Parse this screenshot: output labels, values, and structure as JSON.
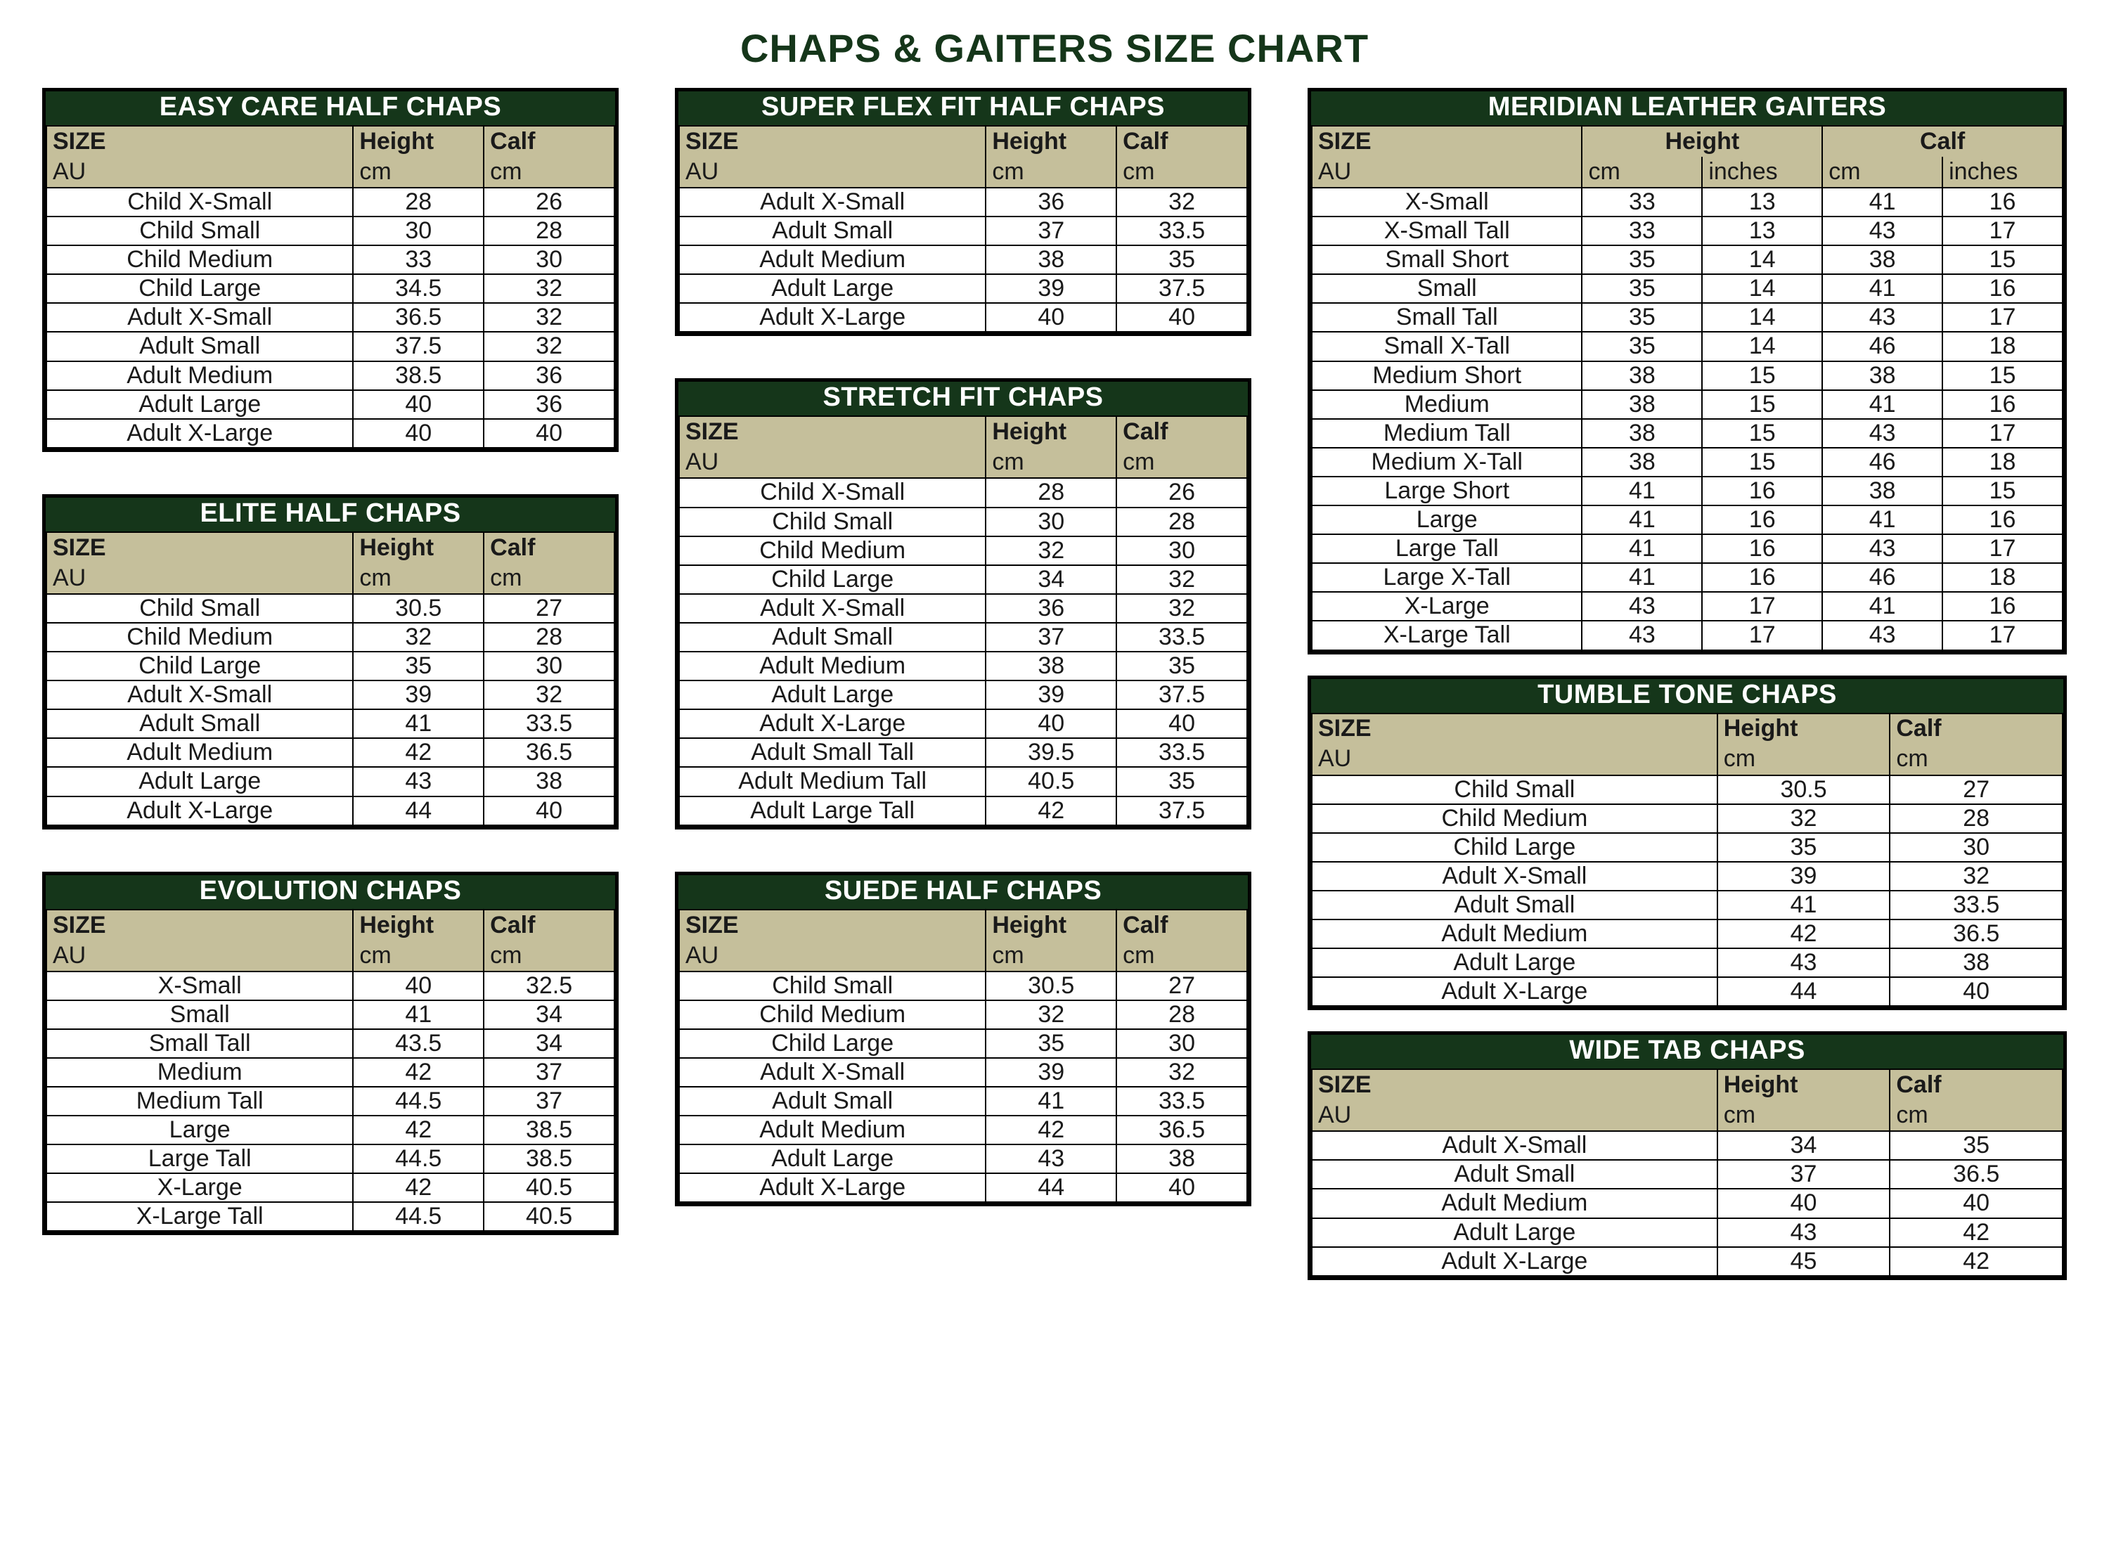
{
  "page_title": "CHAPS & GAITERS SIZE CHART",
  "colors": {
    "header_bg": "#15361a",
    "subhead_bg": "#c5bf9b",
    "border": "#000000",
    "text": "#1a1a1a",
    "page_bg": "#ffffff"
  },
  "labels": {
    "size": "SIZE",
    "au": "AU",
    "height": "Height",
    "calf": "Calf",
    "cm": "cm",
    "inches": "inches"
  },
  "easy_care": {
    "title": "EASY CARE HALF CHAPS",
    "rows": [
      [
        "Child X-Small",
        "28",
        "26"
      ],
      [
        "Child Small",
        "30",
        "28"
      ],
      [
        "Child Medium",
        "33",
        "30"
      ],
      [
        "Child Large",
        "34.5",
        "32"
      ],
      [
        "Adult X-Small",
        "36.5",
        "32"
      ],
      [
        "Adult Small",
        "37.5",
        "32"
      ],
      [
        "Adult Medium",
        "38.5",
        "36"
      ],
      [
        "Adult Large",
        "40",
        "36"
      ],
      [
        "Adult X-Large",
        "40",
        "40"
      ]
    ]
  },
  "elite": {
    "title": "ELITE HALF CHAPS",
    "rows": [
      [
        "Child Small",
        "30.5",
        "27"
      ],
      [
        "Child Medium",
        "32",
        "28"
      ],
      [
        "Child Large",
        "35",
        "30"
      ],
      [
        "Adult X-Small",
        "39",
        "32"
      ],
      [
        "Adult Small",
        "41",
        "33.5"
      ],
      [
        "Adult Medium",
        "42",
        "36.5"
      ],
      [
        "Adult Large",
        "43",
        "38"
      ],
      [
        "Adult X-Large",
        "44",
        "40"
      ]
    ]
  },
  "evolution": {
    "title": "EVOLUTION CHAPS",
    "rows": [
      [
        "X-Small",
        "40",
        "32.5"
      ],
      [
        "Small",
        "41",
        "34"
      ],
      [
        "Small Tall",
        "43.5",
        "34"
      ],
      [
        "Medium",
        "42",
        "37"
      ],
      [
        "Medium Tall",
        "44.5",
        "37"
      ],
      [
        "Large",
        "42",
        "38.5"
      ],
      [
        "Large Tall",
        "44.5",
        "38.5"
      ],
      [
        "X-Large",
        "42",
        "40.5"
      ],
      [
        "X-Large Tall",
        "44.5",
        "40.5"
      ]
    ]
  },
  "superflex": {
    "title": "SUPER FLEX FIT HALF CHAPS",
    "rows": [
      [
        "Adult X-Small",
        "36",
        "32"
      ],
      [
        "Adult Small",
        "37",
        "33.5"
      ],
      [
        "Adult Medium",
        "38",
        "35"
      ],
      [
        "Adult Large",
        "39",
        "37.5"
      ],
      [
        "Adult X-Large",
        "40",
        "40"
      ]
    ]
  },
  "stretch": {
    "title": "STRETCH FIT CHAPS",
    "rows": [
      [
        "Child X-Small",
        "28",
        "26"
      ],
      [
        "Child Small",
        "30",
        "28"
      ],
      [
        "Child Medium",
        "32",
        "30"
      ],
      [
        "Child Large",
        "34",
        "32"
      ],
      [
        "Adult X-Small",
        "36",
        "32"
      ],
      [
        "Adult Small",
        "37",
        "33.5"
      ],
      [
        "Adult Medium",
        "38",
        "35"
      ],
      [
        "Adult Large",
        "39",
        "37.5"
      ],
      [
        "Adult X-Large",
        "40",
        "40"
      ],
      [
        "Adult Small Tall",
        "39.5",
        "33.5"
      ],
      [
        "Adult Medium Tall",
        "40.5",
        "35"
      ],
      [
        "Adult Large Tall",
        "42",
        "37.5"
      ]
    ]
  },
  "suede": {
    "title": "SUEDE HALF CHAPS",
    "rows": [
      [
        "Child Small",
        "30.5",
        "27"
      ],
      [
        "Child Medium",
        "32",
        "28"
      ],
      [
        "Child Large",
        "35",
        "30"
      ],
      [
        "Adult X-Small",
        "39",
        "32"
      ],
      [
        "Adult Small",
        "41",
        "33.5"
      ],
      [
        "Adult Medium",
        "42",
        "36.5"
      ],
      [
        "Adult Large",
        "43",
        "38"
      ],
      [
        "Adult X-Large",
        "44",
        "40"
      ]
    ]
  },
  "meridian": {
    "title": "MERIDIAN LEATHER GAITERS",
    "rows": [
      [
        "X-Small",
        "33",
        "13",
        "41",
        "16"
      ],
      [
        "X-Small Tall",
        "33",
        "13",
        "43",
        "17"
      ],
      [
        "Small Short",
        "35",
        "14",
        "38",
        "15"
      ],
      [
        "Small",
        "35",
        "14",
        "41",
        "16"
      ],
      [
        "Small Tall",
        "35",
        "14",
        "43",
        "17"
      ],
      [
        "Small X-Tall",
        "35",
        "14",
        "46",
        "18"
      ],
      [
        "Medium Short",
        "38",
        "15",
        "38",
        "15"
      ],
      [
        "Medium",
        "38",
        "15",
        "41",
        "16"
      ],
      [
        "Medium Tall",
        "38",
        "15",
        "43",
        "17"
      ],
      [
        "Medium X-Tall",
        "38",
        "15",
        "46",
        "18"
      ],
      [
        "Large Short",
        "41",
        "16",
        "38",
        "15"
      ],
      [
        "Large",
        "41",
        "16",
        "41",
        "16"
      ],
      [
        "Large Tall",
        "41",
        "16",
        "43",
        "17"
      ],
      [
        "Large X-Tall",
        "41",
        "16",
        "46",
        "18"
      ],
      [
        "X-Large",
        "43",
        "17",
        "41",
        "16"
      ],
      [
        "X-Large Tall",
        "43",
        "17",
        "43",
        "17"
      ]
    ]
  },
  "tumble": {
    "title": "TUMBLE TONE CHAPS",
    "rows": [
      [
        "Child Small",
        "30.5",
        "27"
      ],
      [
        "Child Medium",
        "32",
        "28"
      ],
      [
        "Child Large",
        "35",
        "30"
      ],
      [
        "Adult X-Small",
        "39",
        "32"
      ],
      [
        "Adult Small",
        "41",
        "33.5"
      ],
      [
        "Adult Medium",
        "42",
        "36.5"
      ],
      [
        "Adult Large",
        "43",
        "38"
      ],
      [
        "Adult X-Large",
        "44",
        "40"
      ]
    ]
  },
  "widetab": {
    "title": "WIDE TAB CHAPS",
    "rows": [
      [
        "Adult X-Small",
        "34",
        "35"
      ],
      [
        "Adult Small",
        "37",
        "36.5"
      ],
      [
        "Adult Medium",
        "40",
        "40"
      ],
      [
        "Adult Large",
        "43",
        "42"
      ],
      [
        "Adult X-Large",
        "45",
        "42"
      ]
    ]
  }
}
